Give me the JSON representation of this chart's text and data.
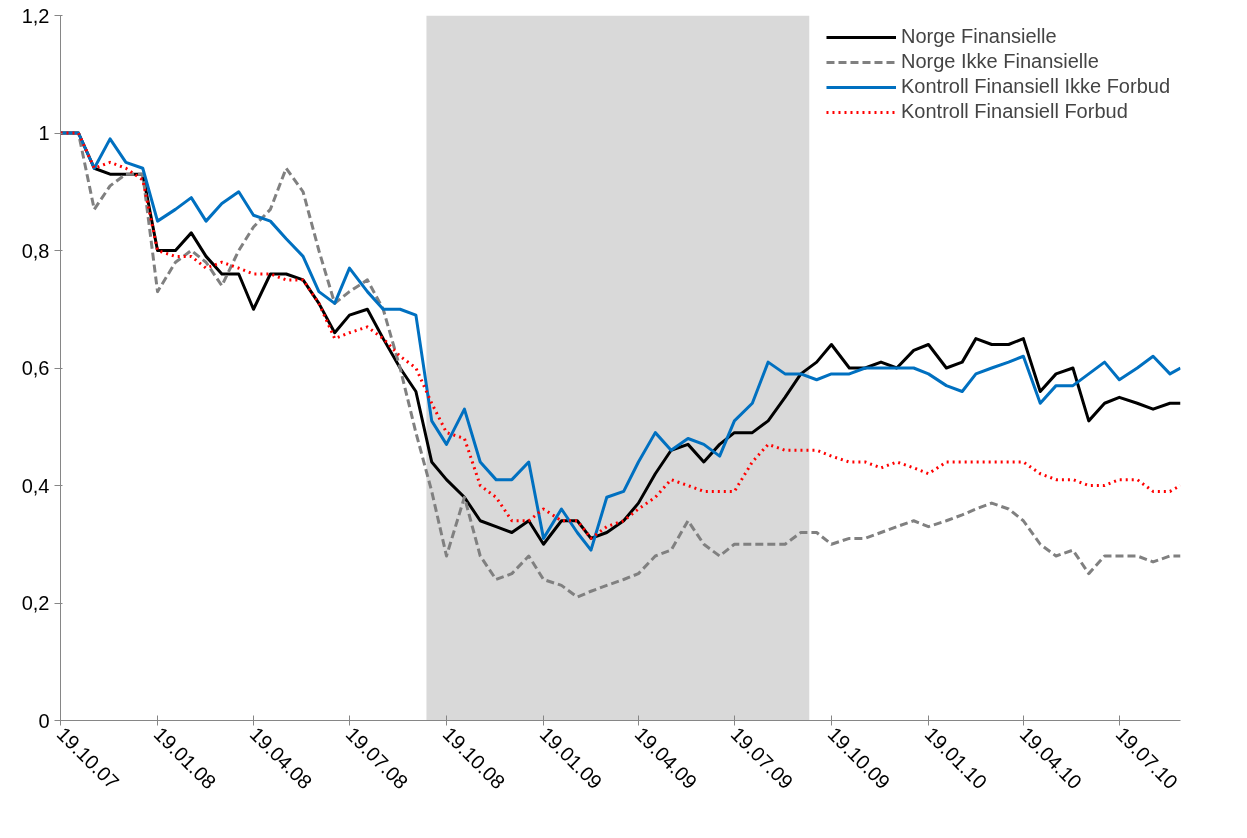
{
  "chart_data": {
    "type": "line",
    "x": [
      "2007-10-19",
      "2007-11-05",
      "2007-11-20",
      "2007-12-05",
      "2007-12-20",
      "2008-01-05",
      "2008-01-19",
      "2008-02-05",
      "2008-02-20",
      "2008-03-05",
      "2008-03-20",
      "2008-04-05",
      "2008-04-19",
      "2008-05-05",
      "2008-05-20",
      "2008-06-05",
      "2008-06-20",
      "2008-07-05",
      "2008-07-19",
      "2008-08-05",
      "2008-08-20",
      "2008-09-05",
      "2008-09-20",
      "2008-10-05",
      "2008-10-19",
      "2008-11-05",
      "2008-11-20",
      "2008-12-05",
      "2008-12-20",
      "2009-01-05",
      "2009-01-19",
      "2009-02-05",
      "2009-02-20",
      "2009-03-05",
      "2009-03-20",
      "2009-04-05",
      "2009-04-19",
      "2009-05-05",
      "2009-05-20",
      "2009-06-05",
      "2009-06-20",
      "2009-07-05",
      "2009-07-19",
      "2009-08-05",
      "2009-08-20",
      "2009-09-05",
      "2009-09-20",
      "2009-10-05",
      "2009-10-19",
      "2009-11-05",
      "2009-11-20",
      "2009-12-05",
      "2009-12-20",
      "2010-01-05",
      "2010-01-19",
      "2010-02-05",
      "2010-02-20",
      "2010-03-05",
      "2010-03-20",
      "2010-04-05",
      "2010-04-19",
      "2010-05-05",
      "2010-05-20",
      "2010-06-05",
      "2010-06-20",
      "2010-07-05",
      "2010-07-19",
      "2010-08-05",
      "2010-08-20",
      "2010-09-05",
      "2010-09-15"
    ],
    "series": [
      {
        "name": "Norge Finansielle",
        "color": "#000000",
        "line_style": "solid",
        "values": [
          1.0,
          1.0,
          0.94,
          0.93,
          0.93,
          0.93,
          0.8,
          0.8,
          0.83,
          0.79,
          0.76,
          0.76,
          0.7,
          0.76,
          0.76,
          0.75,
          0.71,
          0.66,
          0.69,
          0.7,
          0.65,
          0.6,
          0.56,
          0.44,
          0.41,
          0.38,
          0.34,
          0.33,
          0.32,
          0.34,
          0.3,
          0.34,
          0.34,
          0.31,
          0.32,
          0.34,
          0.37,
          0.42,
          0.46,
          0.47,
          0.44,
          0.47,
          0.49,
          0.49,
          0.51,
          0.55,
          0.59,
          0.61,
          0.64,
          0.6,
          0.6,
          0.61,
          0.6,
          0.63,
          0.64,
          0.6,
          0.61,
          0.65,
          0.64,
          0.64,
          0.65,
          0.56,
          0.59,
          0.6,
          0.51,
          0.54,
          0.55,
          0.54,
          0.53,
          0.54,
          0.54
        ]
      },
      {
        "name": "Norge Ikke Finansielle",
        "color": "#808080",
        "line_style": "dashed",
        "values": [
          1.0,
          1.0,
          0.87,
          0.91,
          0.93,
          0.93,
          0.73,
          0.78,
          0.8,
          0.78,
          0.74,
          0.8,
          0.84,
          0.87,
          0.94,
          0.9,
          0.8,
          0.71,
          0.73,
          0.75,
          0.7,
          0.6,
          0.49,
          0.39,
          0.28,
          0.38,
          0.28,
          0.24,
          0.25,
          0.28,
          0.24,
          0.23,
          0.21,
          0.22,
          0.23,
          0.24,
          0.25,
          0.28,
          0.29,
          0.34,
          0.3,
          0.28,
          0.3,
          0.3,
          0.3,
          0.3,
          0.32,
          0.32,
          0.3,
          0.31,
          0.31,
          0.32,
          0.33,
          0.34,
          0.33,
          0.34,
          0.35,
          0.36,
          0.37,
          0.36,
          0.34,
          0.3,
          0.28,
          0.29,
          0.25,
          0.28,
          0.28,
          0.28,
          0.27,
          0.28,
          0.28
        ]
      },
      {
        "name": "Kontroll Finansiell Ikke Forbud",
        "color": "#0070c0",
        "line_style": "solid",
        "values": [
          1.0,
          1.0,
          0.94,
          0.99,
          0.95,
          0.94,
          0.85,
          0.87,
          0.89,
          0.85,
          0.88,
          0.9,
          0.86,
          0.85,
          0.82,
          0.79,
          0.73,
          0.71,
          0.77,
          0.73,
          0.7,
          0.7,
          0.69,
          0.51,
          0.47,
          0.53,
          0.44,
          0.41,
          0.41,
          0.44,
          0.31,
          0.36,
          0.32,
          0.29,
          0.38,
          0.39,
          0.44,
          0.49,
          0.46,
          0.48,
          0.47,
          0.45,
          0.51,
          0.54,
          0.61,
          0.59,
          0.59,
          0.58,
          0.59,
          0.59,
          0.6,
          0.6,
          0.6,
          0.6,
          0.59,
          0.57,
          0.56,
          0.59,
          0.6,
          0.61,
          0.62,
          0.54,
          0.57,
          0.57,
          0.59,
          0.61,
          0.58,
          0.6,
          0.62,
          0.59,
          0.6
        ]
      },
      {
        "name": "Kontroll Finansiell Forbud",
        "color": "#ff0000",
        "line_style": "dotted",
        "values": [
          1.0,
          1.0,
          0.94,
          0.95,
          0.94,
          0.92,
          0.8,
          0.79,
          0.79,
          0.77,
          0.78,
          0.77,
          0.76,
          0.76,
          0.75,
          0.75,
          0.71,
          0.65,
          0.66,
          0.67,
          0.65,
          0.62,
          0.6,
          0.54,
          0.49,
          0.48,
          0.4,
          0.38,
          0.34,
          0.34,
          0.36,
          0.34,
          0.34,
          0.31,
          0.33,
          0.34,
          0.36,
          0.38,
          0.41,
          0.4,
          0.39,
          0.39,
          0.39,
          0.44,
          0.47,
          0.46,
          0.46,
          0.46,
          0.45,
          0.44,
          0.44,
          0.43,
          0.44,
          0.43,
          0.42,
          0.44,
          0.44,
          0.44,
          0.44,
          0.44,
          0.44,
          0.42,
          0.41,
          0.41,
          0.4,
          0.4,
          0.41,
          0.41,
          0.39,
          0.39,
          0.4
        ]
      }
    ],
    "xlim": [
      "2007-10-19",
      "2010-09-15"
    ],
    "xticks": [
      {
        "value": "2007-10-19",
        "label": "19.10.07"
      },
      {
        "value": "2008-01-19",
        "label": "19.01.08"
      },
      {
        "value": "2008-04-19",
        "label": "19.04.08"
      },
      {
        "value": "2008-07-19",
        "label": "19.07.08"
      },
      {
        "value": "2008-10-19",
        "label": "19.10.08"
      },
      {
        "value": "2009-01-19",
        "label": "19.01.09"
      },
      {
        "value": "2009-04-19",
        "label": "19.04.09"
      },
      {
        "value": "2009-07-19",
        "label": "19.07.09"
      },
      {
        "value": "2009-10-19",
        "label": "19.10.09"
      },
      {
        "value": "2010-01-19",
        "label": "19.01.10"
      },
      {
        "value": "2010-04-19",
        "label": "19.04.10"
      },
      {
        "value": "2010-07-19",
        "label": "19.07.10"
      }
    ],
    "ylim": [
      0,
      1.2
    ],
    "yticks": [
      {
        "value": 0,
        "label": "0"
      },
      {
        "value": 0.2,
        "label": "0,2"
      },
      {
        "value": 0.4,
        "label": "0,4"
      },
      {
        "value": 0.6,
        "label": "0,6"
      },
      {
        "value": 0.8,
        "label": "0,8"
      },
      {
        "value": 1,
        "label": "1"
      },
      {
        "value": 1.2,
        "label": "1,2"
      }
    ],
    "bands": [
      {
        "axis": "x",
        "from": "2008-09-30",
        "to": "2009-09-28",
        "color": "#d9d9d9"
      }
    ],
    "legend": "top right",
    "grid": false
  }
}
